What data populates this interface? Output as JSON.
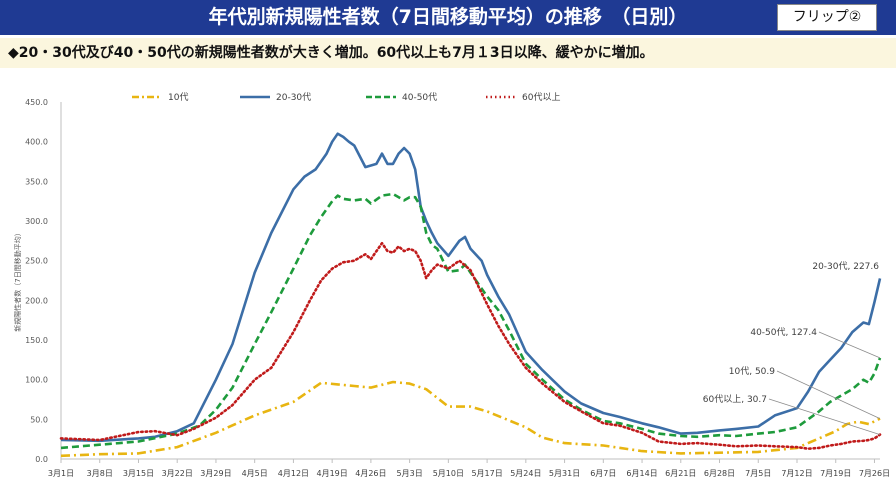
{
  "header": {
    "title": "年代別新規陽性者数（7日間移動平均）の推移　（日別）",
    "badge": "フリップ②",
    "bar_color": "#1f3a93"
  },
  "subtitle": "◆20・30代及び40・50代の新規陽性者数が大きく増加。60代以上も7月１3日以降、緩やかに増加。",
  "chart_data": {
    "type": "line",
    "title": "",
    "xlabel": "",
    "ylabel": "新規陽性者数（7日間移動平均）",
    "ylim": [
      0,
      450
    ],
    "yticks": [
      "0.0",
      "50.0",
      "100.0",
      "150.0",
      "200.0",
      "250.0",
      "300.0",
      "350.0",
      "400.0",
      "450.0"
    ],
    "grid": false,
    "legend_position": "top",
    "x_tick_labels": [
      "3月1日",
      "3月8日",
      "3月15日",
      "3月22日",
      "3月29日",
      "4月5日",
      "4月12日",
      "4月19日",
      "4月26日",
      "5月3日",
      "5月10日",
      "5月17日",
      "5月24日",
      "5月31日",
      "6月7日",
      "6月14日",
      "6月21日",
      "6月28日",
      "7月5日",
      "7月12日",
      "7月19日",
      "7月26日"
    ],
    "x_days": [
      0,
      7,
      14,
      21,
      28,
      35,
      42,
      49,
      56,
      63,
      70,
      77,
      84,
      91,
      98,
      105,
      112,
      119,
      126,
      133,
      140,
      147
    ],
    "series": [
      {
        "name": "10代",
        "color": "#e8b511",
        "style": "dashdot",
        "values": [
          [
            0,
            4
          ],
          [
            7,
            6
          ],
          [
            14,
            7
          ],
          [
            21,
            15
          ],
          [
            28,
            33
          ],
          [
            35,
            55
          ],
          [
            42,
            72
          ],
          [
            47,
            96
          ],
          [
            50,
            94
          ],
          [
            53,
            92
          ],
          [
            56,
            90
          ],
          [
            60,
            97
          ],
          [
            63,
            95
          ],
          [
            66,
            88
          ],
          [
            70,
            66
          ],
          [
            74,
            66
          ],
          [
            77,
            60
          ],
          [
            84,
            40
          ],
          [
            87,
            27
          ],
          [
            91,
            20
          ],
          [
            98,
            17
          ],
          [
            105,
            10
          ],
          [
            112,
            7
          ],
          [
            119,
            8
          ],
          [
            126,
            9
          ],
          [
            133,
            14
          ],
          [
            140,
            35
          ],
          [
            142,
            44
          ],
          [
            144,
            47
          ],
          [
            146,
            44
          ],
          [
            148,
            50.9
          ]
        ]
      },
      {
        "name": "20-30代",
        "color": "#3c6ea7",
        "style": "solid",
        "values": [
          [
            0,
            24
          ],
          [
            7,
            23
          ],
          [
            14,
            26
          ],
          [
            17,
            28
          ],
          [
            21,
            35
          ],
          [
            24,
            45
          ],
          [
            28,
            100
          ],
          [
            31,
            145
          ],
          [
            35,
            235
          ],
          [
            38,
            285
          ],
          [
            42,
            340
          ],
          [
            44,
            356
          ],
          [
            46,
            365
          ],
          [
            48,
            385
          ],
          [
            49,
            400
          ],
          [
            50,
            410
          ],
          [
            51,
            406
          ],
          [
            52,
            400
          ],
          [
            53,
            395
          ],
          [
            55,
            368
          ],
          [
            57,
            372
          ],
          [
            58,
            385
          ],
          [
            59,
            372
          ],
          [
            60,
            372
          ],
          [
            61,
            385
          ],
          [
            62,
            392
          ],
          [
            63,
            385
          ],
          [
            64,
            365
          ],
          [
            65,
            318
          ],
          [
            66,
            300
          ],
          [
            67,
            285
          ],
          [
            68,
            272
          ],
          [
            70,
            256
          ],
          [
            72,
            275
          ],
          [
            73,
            280
          ],
          [
            74,
            265
          ],
          [
            76,
            250
          ],
          [
            77,
            232
          ],
          [
            79,
            205
          ],
          [
            81,
            182
          ],
          [
            84,
            135
          ],
          [
            87,
            112
          ],
          [
            91,
            85
          ],
          [
            94,
            70
          ],
          [
            98,
            58
          ],
          [
            101,
            53
          ],
          [
            105,
            45
          ],
          [
            108,
            40
          ],
          [
            112,
            32
          ],
          [
            115,
            33
          ],
          [
            119,
            36
          ],
          [
            122,
            38
          ],
          [
            126,
            41
          ],
          [
            129,
            55
          ],
          [
            133,
            64
          ],
          [
            135,
            85
          ],
          [
            137,
            110
          ],
          [
            139,
            125
          ],
          [
            141,
            140
          ],
          [
            143,
            160
          ],
          [
            145,
            172
          ],
          [
            146,
            170
          ],
          [
            147,
            198
          ],
          [
            148,
            227.6
          ]
        ]
      },
      {
        "name": "40-50代",
        "color": "#1e9b3c",
        "style": "dash",
        "values": [
          [
            0,
            14
          ],
          [
            7,
            18
          ],
          [
            14,
            22
          ],
          [
            21,
            32
          ],
          [
            25,
            42
          ],
          [
            28,
            62
          ],
          [
            31,
            90
          ],
          [
            35,
            145
          ],
          [
            38,
            185
          ],
          [
            42,
            240
          ],
          [
            45,
            282
          ],
          [
            47,
            305
          ],
          [
            49,
            325
          ],
          [
            50,
            332
          ],
          [
            51,
            328
          ],
          [
            53,
            326
          ],
          [
            55,
            328
          ],
          [
            56,
            322
          ],
          [
            58,
            332
          ],
          [
            60,
            334
          ],
          [
            62,
            326
          ],
          [
            63,
            330
          ],
          [
            64,
            330
          ],
          [
            65,
            318
          ],
          [
            66,
            285
          ],
          [
            67,
            270
          ],
          [
            68,
            265
          ],
          [
            70,
            236
          ],
          [
            72,
            238
          ],
          [
            73,
            245
          ],
          [
            74,
            235
          ],
          [
            77,
            205
          ],
          [
            79,
            188
          ],
          [
            81,
            162
          ],
          [
            84,
            120
          ],
          [
            87,
            100
          ],
          [
            91,
            75
          ],
          [
            94,
            62
          ],
          [
            98,
            48
          ],
          [
            101,
            45
          ],
          [
            105,
            38
          ],
          [
            108,
            32
          ],
          [
            112,
            29
          ],
          [
            115,
            28
          ],
          [
            119,
            30
          ],
          [
            122,
            29
          ],
          [
            126,
            32
          ],
          [
            129,
            34
          ],
          [
            133,
            40
          ],
          [
            135,
            50
          ],
          [
            137,
            60
          ],
          [
            139,
            72
          ],
          [
            141,
            80
          ],
          [
            143,
            88
          ],
          [
            145,
            100
          ],
          [
            146,
            96
          ],
          [
            147,
            108
          ],
          [
            148,
            127.4
          ]
        ]
      },
      {
        "name": "60代以上",
        "color": "#c01b1b",
        "style": "dot",
        "values": [
          [
            0,
            26
          ],
          [
            7,
            24
          ],
          [
            14,
            34
          ],
          [
            17,
            35
          ],
          [
            21,
            30
          ],
          [
            24,
            38
          ],
          [
            28,
            52
          ],
          [
            31,
            68
          ],
          [
            35,
            100
          ],
          [
            38,
            115
          ],
          [
            42,
            160
          ],
          [
            45,
            200
          ],
          [
            47,
            225
          ],
          [
            49,
            240
          ],
          [
            51,
            248
          ],
          [
            53,
            250
          ],
          [
            55,
            258
          ],
          [
            56,
            252
          ],
          [
            58,
            272
          ],
          [
            59,
            262
          ],
          [
            60,
            260
          ],
          [
            61,
            268
          ],
          [
            62,
            262
          ],
          [
            63,
            265
          ],
          [
            64,
            262
          ],
          [
            65,
            250
          ],
          [
            66,
            228
          ],
          [
            67,
            238
          ],
          [
            68,
            245
          ],
          [
            70,
            240
          ],
          [
            72,
            250
          ],
          [
            74,
            238
          ],
          [
            77,
            195
          ],
          [
            79,
            168
          ],
          [
            81,
            145
          ],
          [
            84,
            115
          ],
          [
            87,
            95
          ],
          [
            91,
            72
          ],
          [
            94,
            60
          ],
          [
            98,
            45
          ],
          [
            101,
            42
          ],
          [
            105,
            33
          ],
          [
            108,
            22
          ],
          [
            112,
            19
          ],
          [
            115,
            20
          ],
          [
            119,
            18
          ],
          [
            122,
            16
          ],
          [
            126,
            17
          ],
          [
            129,
            16
          ],
          [
            133,
            15
          ],
          [
            135,
            13
          ],
          [
            137,
            14
          ],
          [
            139,
            17
          ],
          [
            141,
            19
          ],
          [
            143,
            22
          ],
          [
            145,
            23
          ],
          [
            146,
            24
          ],
          [
            147,
            26
          ],
          [
            148,
            30.7
          ]
        ]
      }
    ],
    "end_labels": [
      {
        "series": "20-30代",
        "text": "20-30代, 227.6"
      },
      {
        "series": "40-50代",
        "text": "40-50代, 127.4"
      },
      {
        "series": "10代",
        "text": "10代, 50.9"
      },
      {
        "series": "60代以上",
        "text": "60代以上, 30.7"
      }
    ]
  }
}
